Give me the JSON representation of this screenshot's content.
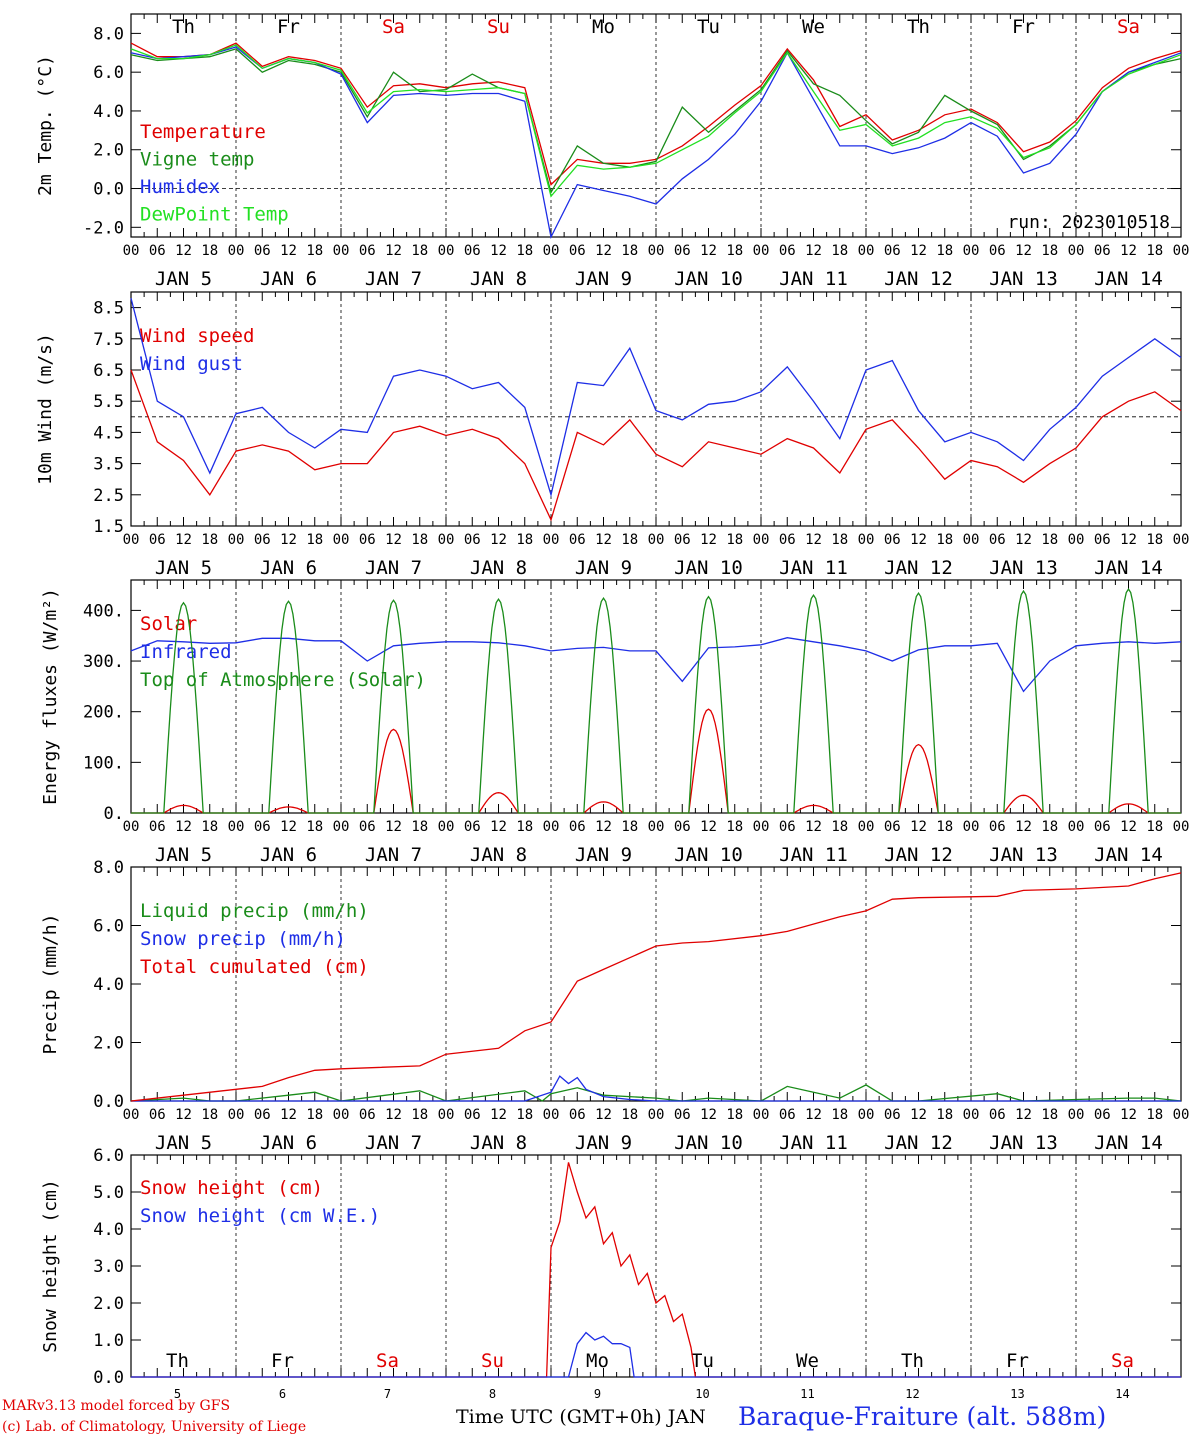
{
  "days": [
    "5",
    "6",
    "7",
    "8",
    "9",
    "10",
    "11",
    "12",
    "13",
    "14"
  ],
  "weekdays": [
    {
      "label": "Th",
      "color": "#000000"
    },
    {
      "label": "Fr",
      "color": "#000000"
    },
    {
      "label": "Sa",
      "color": "#e00000"
    },
    {
      "label": "Su",
      "color": "#e00000"
    },
    {
      "label": "Mo",
      "color": "#000000"
    },
    {
      "label": "Tu",
      "color": "#000000"
    },
    {
      "label": "We",
      "color": "#000000"
    },
    {
      "label": "Th",
      "color": "#000000"
    },
    {
      "label": "Fr",
      "color": "#000000"
    },
    {
      "label": "Sa",
      "color": "#e00000"
    }
  ],
  "month": "JAN",
  "hour_ticks": [
    "00",
    "06",
    "12",
    "18"
  ],
  "run_label": "run: 2023010518",
  "footer": {
    "credit1": "MARv3.13 model forced by GFS",
    "credit2": "(c) Lab. of Climatology, University of Liege",
    "xlabel": "Time UTC (GMT+0h) JAN",
    "station": "Baraque-Fraiture (alt. 588m)"
  },
  "chart_data": [
    {
      "type": "line",
      "ylabel": "2m Temp. (°C)",
      "ylim": [
        -2.5,
        9.0
      ],
      "yticks": [
        -2.0,
        0.0,
        2.0,
        4.0,
        6.0,
        8.0
      ],
      "yticklabels": [
        "-2.0",
        "0.0",
        "2.0",
        "4.0",
        "6.0",
        "8.0"
      ],
      "reference_line": 0.0,
      "x_unit": "hours since Jan 5 00 UTC",
      "series": [
        {
          "name": "Temperature",
          "color": "#e00000",
          "x": [
            0,
            6,
            12,
            18,
            24,
            30,
            36,
            42,
            48,
            54,
            60,
            66,
            72,
            78,
            84,
            90,
            96,
            102,
            108,
            114,
            120,
            126,
            132,
            138,
            144,
            150,
            156,
            162,
            168,
            174,
            180,
            186,
            192,
            198,
            204,
            210,
            216,
            222,
            228,
            234,
            240
          ],
          "y": [
            7.5,
            6.8,
            6.8,
            6.9,
            7.5,
            6.3,
            6.8,
            6.6,
            6.2,
            4.2,
            5.3,
            5.4,
            5.2,
            5.4,
            5.5,
            5.2,
            0.2,
            1.5,
            1.3,
            1.3,
            1.5,
            2.2,
            3.2,
            4.3,
            5.3,
            7.2,
            5.6,
            3.2,
            3.8,
            2.5,
            3.0,
            3.8,
            4.1,
            3.4,
            1.9,
            2.4,
            3.5,
            5.2,
            6.2,
            6.7,
            7.1
          ]
        },
        {
          "name": "Vigne temp",
          "color": "#1a8c1a",
          "x": [
            0,
            6,
            12,
            18,
            24,
            30,
            36,
            42,
            48,
            54,
            60,
            66,
            72,
            78,
            84,
            90,
            96,
            102,
            108,
            114,
            120,
            126,
            132,
            138,
            144,
            150,
            156,
            162,
            168,
            174,
            180,
            186,
            192,
            198,
            204,
            210,
            216,
            222,
            228,
            234,
            240
          ],
          "y": [
            6.9,
            6.6,
            6.7,
            6.8,
            7.2,
            6.0,
            6.6,
            6.4,
            6.0,
            3.7,
            6.0,
            5.0,
            5.1,
            5.9,
            5.2,
            4.9,
            -0.2,
            2.2,
            1.3,
            1.1,
            1.4,
            4.2,
            2.9,
            4.0,
            5.1,
            7.1,
            5.4,
            4.8,
            3.5,
            2.3,
            2.9,
            4.8,
            4.0,
            3.3,
            1.5,
            2.2,
            3.3,
            5.0,
            6.0,
            6.4,
            6.7
          ]
        },
        {
          "name": "Humidex",
          "color": "#1e2ee6",
          "x": [
            0,
            6,
            12,
            18,
            24,
            30,
            36,
            42,
            48,
            54,
            60,
            66,
            72,
            78,
            84,
            90,
            96,
            102,
            108,
            114,
            120,
            126,
            132,
            138,
            144,
            150,
            156,
            162,
            168,
            174,
            180,
            186,
            192,
            198,
            204,
            210,
            216,
            222,
            228,
            234,
            240
          ],
          "y": [
            7.0,
            6.7,
            6.8,
            6.9,
            7.3,
            6.2,
            6.7,
            6.5,
            5.9,
            3.4,
            4.8,
            4.9,
            4.8,
            4.9,
            4.9,
            4.5,
            -2.5,
            0.2,
            -0.1,
            -0.4,
            -0.8,
            0.5,
            1.5,
            2.8,
            4.5,
            7.0,
            4.6,
            2.2,
            2.2,
            1.8,
            2.1,
            2.6,
            3.4,
            2.7,
            0.8,
            1.3,
            2.8,
            5.0,
            6.0,
            6.5,
            7.0
          ]
        },
        {
          "name": "DewPoint Temp",
          "color": "#22e022",
          "x": [
            0,
            6,
            12,
            18,
            24,
            30,
            36,
            42,
            48,
            54,
            60,
            66,
            72,
            78,
            84,
            90,
            96,
            102,
            108,
            114,
            120,
            126,
            132,
            138,
            144,
            150,
            156,
            162,
            168,
            174,
            180,
            186,
            192,
            198,
            204,
            210,
            216,
            222,
            228,
            234,
            240
          ],
          "y": [
            7.2,
            6.7,
            6.7,
            6.9,
            7.4,
            6.2,
            6.7,
            6.5,
            6.1,
            3.9,
            5.0,
            5.1,
            5.0,
            5.1,
            5.2,
            4.9,
            -0.4,
            1.2,
            1.0,
            1.1,
            1.3,
            2.0,
            2.7,
            3.9,
            5.0,
            7.0,
            5.0,
            3.0,
            3.3,
            2.2,
            2.6,
            3.4,
            3.7,
            3.1,
            1.6,
            2.1,
            3.3,
            5.0,
            5.9,
            6.4,
            6.9
          ]
        }
      ]
    },
    {
      "type": "line",
      "ylabel": "10m Wind (m/s)",
      "ylim": [
        1.5,
        9.0
      ],
      "yticks": [
        1.5,
        2.5,
        3.5,
        4.5,
        5.5,
        6.5,
        7.5,
        8.5
      ],
      "yticklabels": [
        "1.5",
        "2.5",
        "3.5",
        "4.5",
        "5.5",
        "6.5",
        "7.5",
        "8.5"
      ],
      "reference_line": 5.0,
      "series": [
        {
          "name": "Wind speed",
          "color": "#e00000",
          "x": [
            0,
            6,
            12,
            18,
            24,
            30,
            36,
            42,
            48,
            54,
            60,
            66,
            72,
            78,
            84,
            90,
            96,
            102,
            108,
            114,
            120,
            126,
            132,
            138,
            144,
            150,
            156,
            162,
            168,
            174,
            180,
            186,
            192,
            198,
            204,
            210,
            216,
            222,
            228,
            234,
            240
          ],
          "y": [
            6.5,
            4.2,
            3.6,
            2.5,
            3.9,
            4.1,
            3.9,
            3.3,
            3.5,
            3.5,
            4.5,
            4.7,
            4.4,
            4.6,
            4.3,
            3.5,
            1.7,
            4.5,
            4.1,
            4.9,
            3.8,
            3.4,
            4.2,
            4.0,
            3.8,
            4.3,
            4.0,
            3.2,
            4.6,
            4.9,
            4.0,
            3.0,
            3.6,
            3.4,
            2.9,
            3.5,
            4.0,
            5.0,
            5.5,
            5.8,
            5.2
          ]
        },
        {
          "name": "Wind gust",
          "color": "#1e2ee6",
          "x": [
            0,
            6,
            12,
            18,
            24,
            30,
            36,
            42,
            48,
            54,
            60,
            66,
            72,
            78,
            84,
            90,
            96,
            102,
            108,
            114,
            120,
            126,
            132,
            138,
            144,
            150,
            156,
            162,
            168,
            174,
            180,
            186,
            192,
            198,
            204,
            210,
            216,
            222,
            228,
            234,
            240
          ],
          "y": [
            8.8,
            5.5,
            5.0,
            3.2,
            5.1,
            5.3,
            4.5,
            4.0,
            4.6,
            4.5,
            6.3,
            6.5,
            6.3,
            5.9,
            6.1,
            5.3,
            2.5,
            6.1,
            6.0,
            7.2,
            5.2,
            4.9,
            5.4,
            5.5,
            5.8,
            6.6,
            5.5,
            4.3,
            6.5,
            6.8,
            5.2,
            4.2,
            4.5,
            4.2,
            3.6,
            4.6,
            5.3,
            6.3,
            6.9,
            7.5,
            6.9
          ]
        }
      ]
    },
    {
      "type": "line",
      "ylabel": "Energy fluxes (W/m²)",
      "ylim": [
        0,
        460
      ],
      "yticks": [
        0,
        100,
        200,
        300,
        400
      ],
      "yticklabels": [
        "0.",
        "100.",
        "200.",
        "300.",
        "400."
      ],
      "series": [
        {
          "name": "Solar",
          "color": "#e00000",
          "day_peaks": [
            15,
            12,
            165,
            40,
            22,
            205,
            15,
            135,
            35,
            18
          ]
        },
        {
          "name": "Infrared",
          "color": "#1e2ee6",
          "x": [
            0,
            6,
            12,
            18,
            24,
            30,
            36,
            42,
            48,
            54,
            60,
            66,
            72,
            78,
            84,
            90,
            96,
            102,
            108,
            114,
            120,
            126,
            132,
            138,
            144,
            150,
            156,
            162,
            168,
            174,
            180,
            186,
            192,
            198,
            204,
            210,
            216,
            222,
            228,
            234,
            240
          ],
          "y": [
            320,
            340,
            338,
            335,
            336,
            345,
            345,
            340,
            340,
            300,
            330,
            335,
            338,
            338,
            336,
            330,
            320,
            325,
            327,
            320,
            320,
            260,
            326,
            328,
            332,
            346,
            338,
            330,
            320,
            300,
            322,
            330,
            330,
            335,
            240,
            300,
            330,
            335,
            338,
            335,
            338
          ]
        },
        {
          "name": "Top of Atmosphere (Solar)",
          "color": "#1a8c1a",
          "day_peaks": [
            415,
            418,
            420,
            422,
            424,
            427,
            430,
            434,
            438,
            442
          ]
        }
      ]
    },
    {
      "type": "line",
      "ylabel": "Precip (mm/h)",
      "ylim": [
        0,
        8.0
      ],
      "yticks": [
        0,
        2,
        4,
        6,
        8
      ],
      "yticklabels": [
        "0.0",
        "2.0",
        "4.0",
        "6.0",
        "8.0"
      ],
      "series": [
        {
          "name": "Liquid precip (mm/h)",
          "color": "#1a8c1a",
          "x": [
            0,
            12,
            18,
            24,
            36,
            42,
            48,
            66,
            72,
            90,
            94,
            96,
            102,
            108,
            120,
            126,
            132,
            144,
            150,
            156,
            162,
            168,
            174,
            180,
            198,
            204,
            216,
            228,
            234,
            240
          ],
          "y": [
            0,
            0.1,
            0,
            0,
            0.2,
            0.3,
            0,
            0.35,
            0,
            0.35,
            0,
            0.25,
            0.45,
            0.2,
            0.1,
            0,
            0.1,
            0,
            0.5,
            0.3,
            0.1,
            0.55,
            0,
            0,
            0.25,
            0,
            0.05,
            0.1,
            0.1,
            0
          ]
        },
        {
          "name": "Snow precip (mm/h)",
          "color": "#1e2ee6",
          "x": [
            0,
            90,
            96,
            98,
            100,
            102,
            104,
            108,
            114,
            120,
            240
          ],
          "y": [
            0,
            0,
            0.3,
            0.85,
            0.6,
            0.8,
            0.4,
            0.15,
            0.05,
            0,
            0
          ]
        },
        {
          "name": "Total cumulated (cm)",
          "color": "#e00000",
          "x": [
            0,
            12,
            24,
            30,
            36,
            42,
            48,
            66,
            72,
            84,
            90,
            96,
            102,
            108,
            114,
            120,
            126,
            132,
            144,
            150,
            162,
            168,
            174,
            180,
            198,
            204,
            216,
            228,
            234,
            240
          ],
          "y": [
            0,
            0.2,
            0.4,
            0.5,
            0.8,
            1.05,
            1.1,
            1.2,
            1.6,
            1.8,
            2.4,
            2.7,
            4.1,
            4.5,
            4.9,
            5.3,
            5.4,
            5.45,
            5.65,
            5.8,
            6.3,
            6.5,
            6.9,
            6.95,
            7.0,
            7.2,
            7.25,
            7.35,
            7.6,
            7.8
          ]
        }
      ]
    },
    {
      "type": "line",
      "ylabel": "Snow height (cm)",
      "ylim": [
        0,
        6.0
      ],
      "yticks": [
        0,
        1,
        2,
        3,
        4,
        5,
        6
      ],
      "yticklabels": [
        "0.0",
        "1.0",
        "2.0",
        "3.0",
        "4.0",
        "5.0",
        "6.0"
      ],
      "series": [
        {
          "name": "Snow height (cm)",
          "color": "#e00000",
          "x": [
            0,
            95,
            96,
            98,
            100,
            102,
            104,
            106,
            108,
            110,
            112,
            114,
            116,
            118,
            120,
            122,
            124,
            126,
            128,
            129,
            150,
            204,
            240
          ],
          "y": [
            0,
            0,
            3.5,
            4.2,
            5.8,
            5.0,
            4.3,
            4.6,
            3.6,
            3.9,
            3.0,
            3.3,
            2.5,
            2.8,
            2.0,
            2.2,
            1.5,
            1.7,
            0.8,
            0,
            0,
            0,
            0
          ]
        },
        {
          "name": "Snow height (cm W.E.)",
          "color": "#1e2ee6",
          "x": [
            0,
            100,
            102,
            104,
            106,
            108,
            110,
            112,
            114,
            115,
            240
          ],
          "y": [
            0,
            0,
            0.9,
            1.2,
            1.0,
            1.1,
            0.9,
            0.9,
            0.8,
            0,
            0
          ]
        }
      ]
    }
  ]
}
